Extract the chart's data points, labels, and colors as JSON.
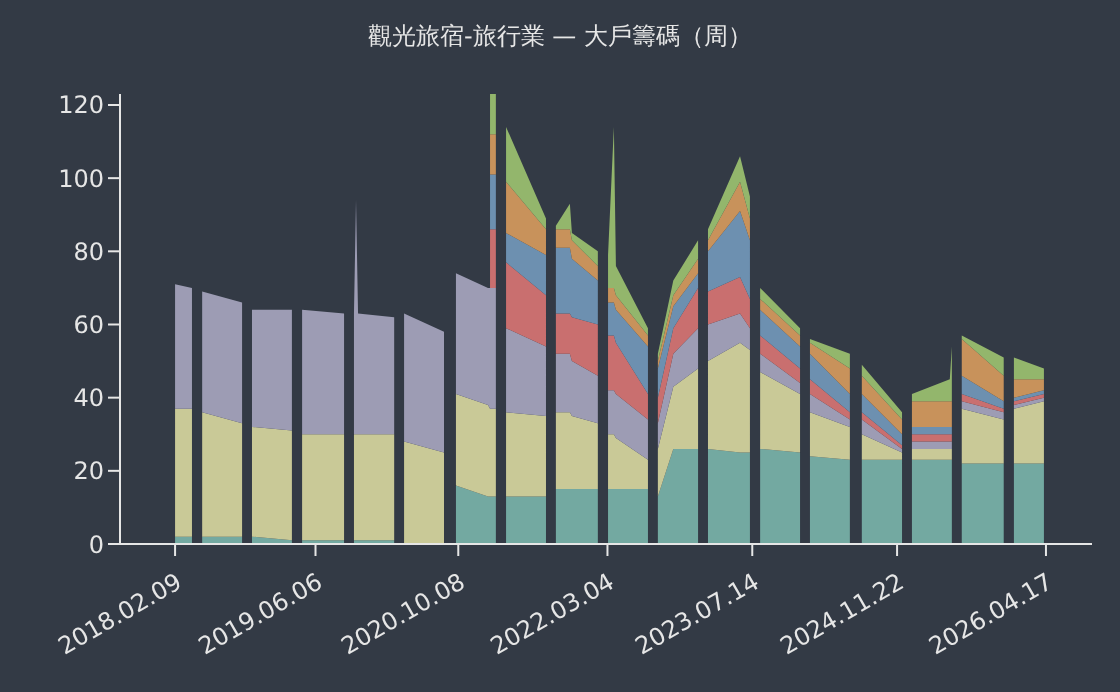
{
  "chart_data": {
    "type": "area",
    "stacked": true,
    "title": "觀光旅宿-旅行業 — 大戶籌碼（周）",
    "x": [
      "2018-02-09",
      "2018-04-08",
      "2018-04-09",
      "2018-05-13",
      "2018-09-27",
      "2018-09-28",
      "2018-10-31",
      "2019-03-17",
      "2019-03-18",
      "2019-04-21",
      "2019-09-12",
      "2019-09-13",
      "2019-10-16",
      "2019-10-23",
      "2019-10-30",
      "2020-03-02",
      "2020-03-03",
      "2020-04-05",
      "2020-08-20",
      "2020-08-21",
      "2020-09-30",
      "2021-01-18",
      "2021-01-25",
      "2021-02-14",
      "2021-02-15",
      "2021-03-21",
      "2021-08-05",
      "2021-08-06",
      "2021-09-08",
      "2021-10-26",
      "2021-11-02",
      "2022-01-30",
      "2022-01-31",
      "2022-03-06",
      "2022-03-26",
      "2022-04-02",
      "2022-07-21",
      "2022-07-22",
      "2022-08-24",
      "2022-10-16",
      "2023-01-09",
      "2023-01-10",
      "2023-02-12",
      "2023-06-02",
      "2023-07-06",
      "2023-07-07",
      "2023-08-10",
      "2023-12-25",
      "2023-12-26",
      "2024-01-28",
      "2024-06-13",
      "2024-06-14",
      "2024-07-24",
      "2024-12-09",
      "2024-12-10",
      "2025-01-12",
      "2025-05-22",
      "2025-05-29",
      "2025-05-30",
      "2025-07-02",
      "2025-11-23",
      "2025-11-24",
      "2025-12-28",
      "2026-04-10"
    ],
    "series": [
      {
        "color": "#73a9a1",
        "values": [
          2,
          2,
          null,
          2,
          2,
          null,
          2,
          1,
          null,
          1,
          1,
          null,
          1,
          1,
          1,
          1,
          null,
          null,
          null,
          null,
          16,
          13,
          13,
          13,
          null,
          13,
          13,
          null,
          15,
          15,
          15,
          15,
          null,
          15,
          15,
          15,
          15,
          null,
          13,
          26,
          26,
          null,
          26,
          25,
          25,
          null,
          26,
          25,
          null,
          24,
          23,
          null,
          23,
          23,
          null,
          23,
          23,
          23,
          null,
          22,
          22,
          null,
          22,
          22
        ]
      },
      {
        "color": "#c9c997",
        "values": [
          35,
          35,
          null,
          34,
          31,
          null,
          30,
          30,
          null,
          29,
          29,
          null,
          29,
          29,
          29,
          29,
          null,
          28,
          25,
          null,
          25,
          25,
          24,
          24,
          null,
          23,
          22,
          null,
          21,
          21,
          20,
          18,
          null,
          15,
          15,
          14,
          8,
          null,
          13,
          17,
          22,
          null,
          24,
          30,
          28,
          null,
          21,
          16,
          null,
          12,
          9,
          null,
          7,
          2,
          null,
          3,
          3,
          3,
          null,
          15,
          12,
          null,
          15,
          17
        ]
      },
      {
        "color": "#9d9cb4",
        "values": [
          34,
          33,
          null,
          33,
          33,
          null,
          32,
          33,
          null,
          34,
          33,
          null,
          33,
          64,
          33,
          32,
          null,
          35,
          33,
          null,
          33,
          32,
          33,
          33,
          null,
          23,
          19,
          null,
          16,
          16,
          15,
          13,
          null,
          12,
          12,
          12,
          11,
          null,
          7,
          9,
          11,
          null,
          10,
          8,
          6,
          null,
          5,
          3,
          null,
          5,
          2,
          null,
          4,
          1,
          null,
          2,
          2,
          2,
          null,
          2,
          2,
          null,
          1,
          1
        ]
      },
      {
        "color": "#c96f6f",
        "values": [
          null,
          null,
          null,
          null,
          null,
          null,
          null,
          null,
          null,
          null,
          null,
          null,
          null,
          null,
          null,
          null,
          null,
          null,
          null,
          null,
          null,
          null,
          16,
          16,
          null,
          18,
          14,
          null,
          11,
          11,
          12,
          14,
          null,
          15,
          15,
          14,
          7,
          null,
          7,
          7,
          11,
          null,
          9,
          10,
          8,
          null,
          5,
          4,
          null,
          4,
          2,
          null,
          2,
          1,
          null,
          2,
          2,
          2,
          null,
          2,
          1,
          null,
          1,
          1
        ]
      },
      {
        "color": "#6d90b0",
        "values": [
          null,
          null,
          null,
          null,
          null,
          null,
          null,
          null,
          null,
          null,
          null,
          null,
          null,
          null,
          null,
          null,
          null,
          null,
          null,
          null,
          null,
          null,
          15,
          15,
          null,
          8,
          11,
          null,
          18,
          18,
          16,
          12,
          null,
          9,
          9,
          9,
          13,
          null,
          8,
          6,
          4,
          null,
          11,
          18,
          16,
          null,
          7,
          6,
          null,
          7,
          5,
          null,
          5,
          3,
          null,
          2,
          2,
          2,
          null,
          5,
          2,
          null,
          1,
          1
        ]
      },
      {
        "color": "#c8925b",
        "values": [
          null,
          null,
          null,
          null,
          null,
          null,
          null,
          null,
          null,
          null,
          null,
          null,
          null,
          null,
          null,
          null,
          null,
          null,
          null,
          null,
          null,
          null,
          11,
          11,
          null,
          14,
          7,
          null,
          5,
          5,
          5,
          4,
          null,
          4,
          4,
          4,
          3,
          null,
          2,
          3,
          4,
          null,
          3,
          8,
          6,
          null,
          3,
          3,
          null,
          3,
          7,
          null,
          5,
          4,
          null,
          7,
          7,
          7,
          null,
          10,
          7,
          null,
          5,
          3
        ]
      },
      {
        "color": "#93b66c",
        "values": [
          null,
          null,
          null,
          null,
          null,
          null,
          null,
          null,
          null,
          null,
          null,
          null,
          null,
          null,
          null,
          null,
          null,
          null,
          null,
          null,
          null,
          null,
          11,
          11,
          null,
          15,
          3,
          null,
          1,
          7,
          2,
          4,
          null,
          9,
          44,
          8,
          2,
          null,
          2,
          4,
          5,
          null,
          3,
          7,
          6,
          null,
          3,
          2,
          null,
          1,
          4,
          null,
          3,
          2,
          null,
          2,
          6,
          15,
          null,
          1,
          5,
          null,
          6,
          3
        ]
      }
    ],
    "xlim": [
      "2017-08-04",
      "2026-09-22"
    ],
    "xticks": [
      {
        "value": "2018-02-09",
        "label": "2018.02.09"
      },
      {
        "value": "2019-06-06",
        "label": "2019.06.06"
      },
      {
        "value": "2020-10-08",
        "label": "2020.10.08"
      },
      {
        "value": "2022-03-04",
        "label": "2022.03.04"
      },
      {
        "value": "2023-07-14",
        "label": "2023.07.14"
      },
      {
        "value": "2024-11-22",
        "label": "2024.11.22"
      },
      {
        "value": "2026-04-17",
        "label": "2026.04.17"
      }
    ],
    "ylim": [
      0,
      123
    ],
    "yticks": [
      0,
      20,
      40,
      60,
      80,
      100,
      120
    ]
  }
}
